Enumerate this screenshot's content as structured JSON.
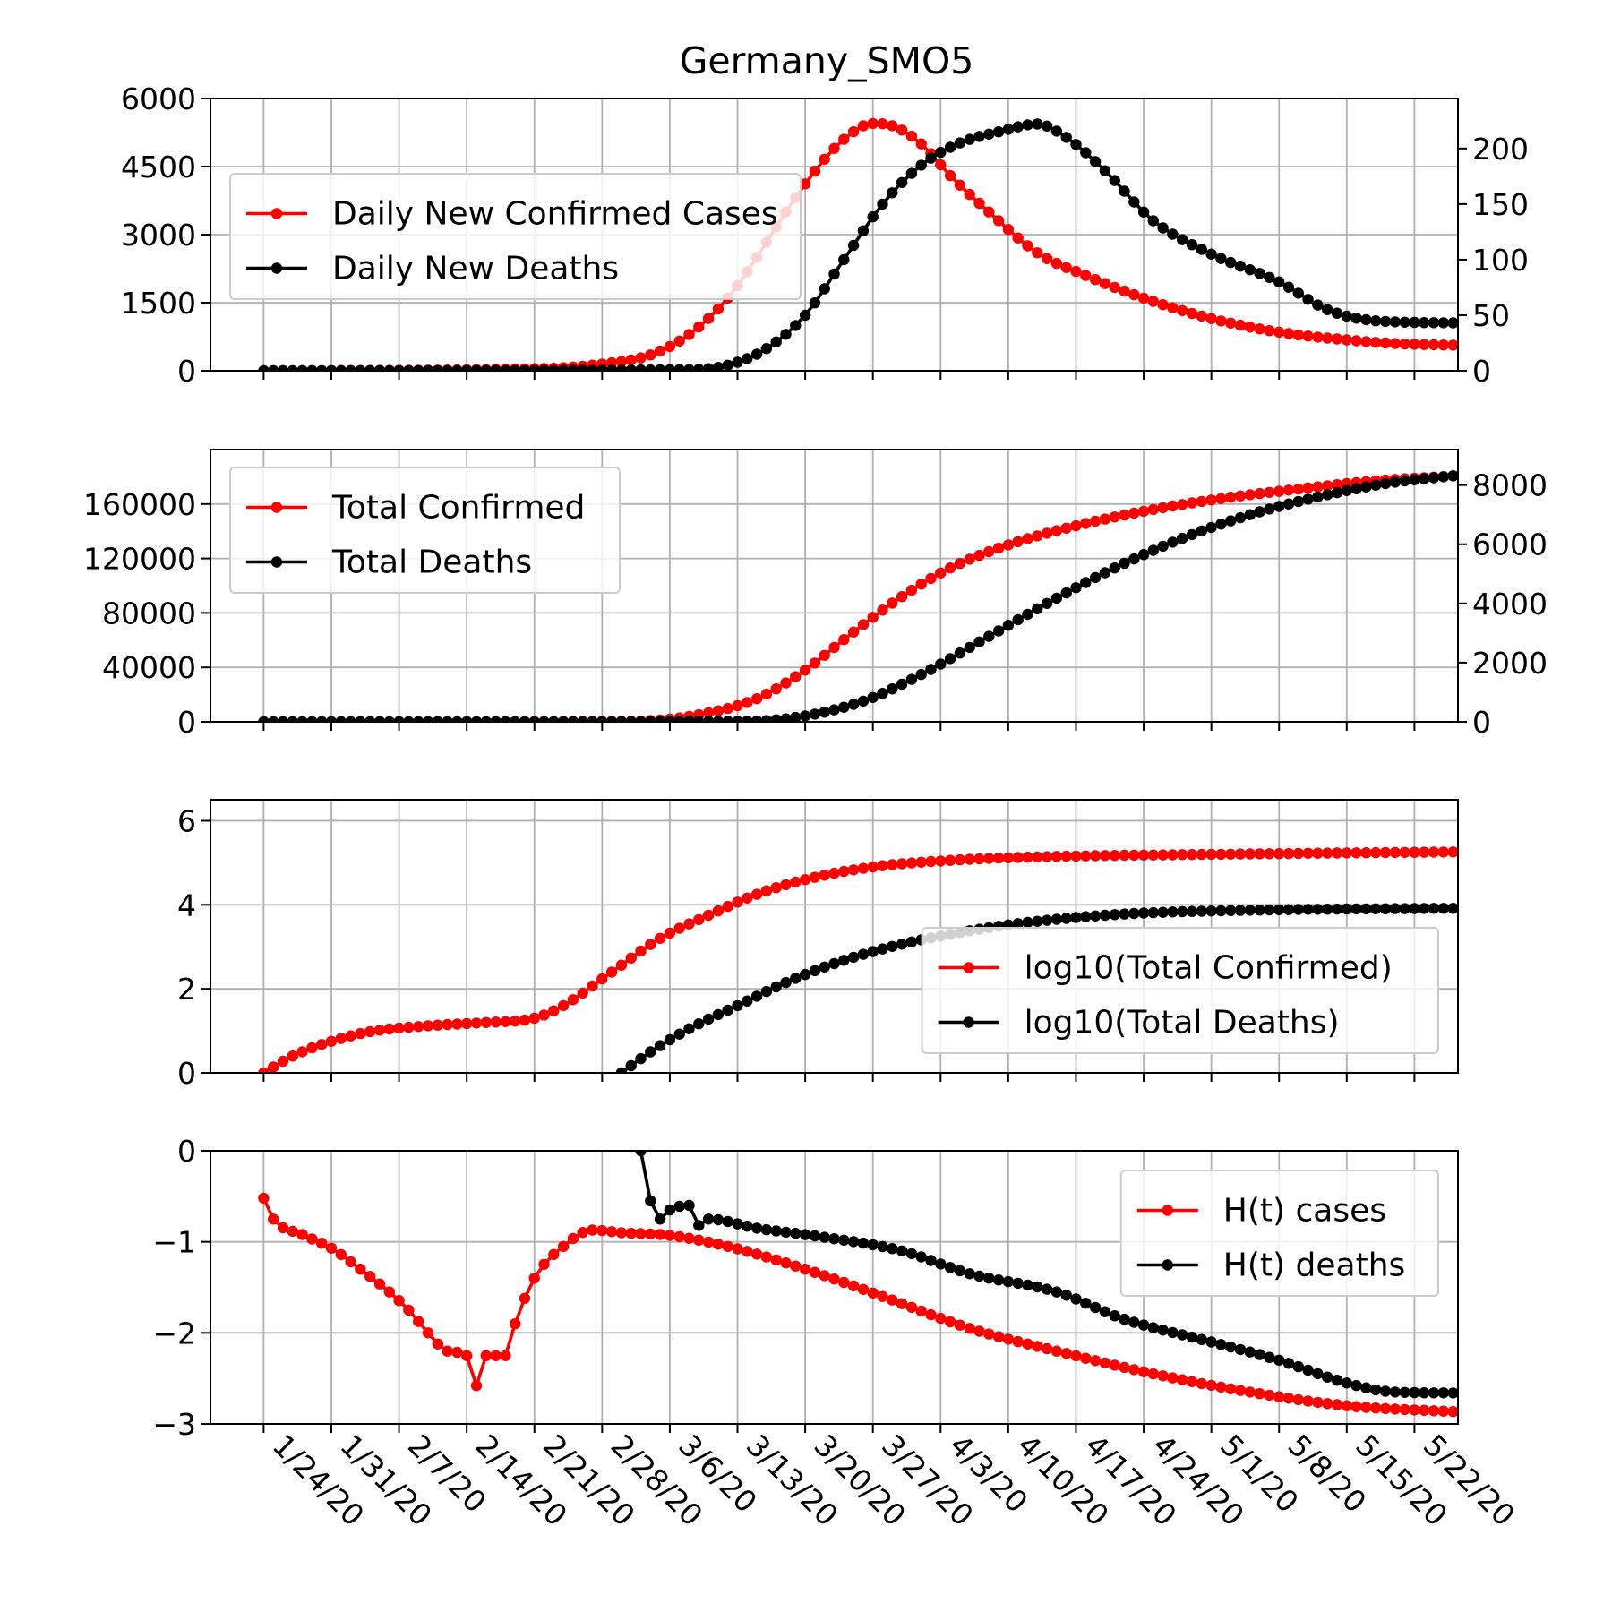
{
  "figure": {
    "title": "Germany_SMO5"
  },
  "colors": {
    "cases": "#ff0000",
    "deaths": "#000000",
    "grid": "#b0b0b0"
  },
  "x_ticks": {
    "days": [
      0,
      7,
      14,
      21,
      28,
      35,
      42,
      49,
      56,
      63,
      70,
      77,
      84,
      91,
      98,
      105,
      112,
      119
    ],
    "labels": [
      "1/24/20",
      "1/31/20",
      "2/7/20",
      "2/14/20",
      "2/21/20",
      "2/28/20",
      "3/6/20",
      "3/13/20",
      "3/20/20",
      "3/27/20",
      "4/3/20",
      "4/10/20",
      "4/17/20",
      "4/24/20",
      "5/1/20",
      "5/8/20",
      "5/15/20",
      "5/22/20"
    ],
    "rotation": "-45deg (clockwise-down)"
  },
  "chart_data": [
    {
      "type": "line",
      "title": "Germany_SMO5",
      "x_range": [
        "1/24/20",
        "5/27/20"
      ],
      "ylim": [
        0,
        6000
      ],
      "yticks": [
        0,
        1500,
        3000,
        4500,
        6000
      ],
      "ylim_right": [
        0,
        245
      ],
      "yticks_right": [
        0,
        50,
        100,
        150,
        200
      ],
      "grid": true,
      "legend": "upper-left",
      "series": [
        {
          "name": "Daily New Confirmed Cases",
          "axis": "left",
          "color": "#ff0000",
          "points": [
            [
              "1/24/20",
              0
            ],
            [
              "2/22/20",
              50
            ],
            [
              "2/28/20",
              150
            ],
            [
              "3/4/20",
              350
            ],
            [
              "3/8/20",
              800
            ],
            [
              "3/12/20",
              1600
            ],
            [
              "3/15/20",
              2500
            ],
            [
              "3/18/20",
              3500
            ],
            [
              "3/21/20",
              4400
            ],
            [
              "3/24/20",
              5100
            ],
            [
              "3/27/20",
              5450
            ],
            [
              "3/29/20",
              5400
            ],
            [
              "4/1/20",
              5000
            ],
            [
              "4/4/20",
              4300
            ],
            [
              "4/8/20",
              3500
            ],
            [
              "4/13/20",
              2600
            ],
            [
              "4/18/20",
              2100
            ],
            [
              "4/24/20",
              1600
            ],
            [
              "5/1/20",
              1150
            ],
            [
              "5/8/20",
              850
            ],
            [
              "5/15/20",
              680
            ],
            [
              "5/20/20",
              600
            ],
            [
              "5/27/20",
              560
            ]
          ]
        },
        {
          "name": "Daily New Deaths",
          "axis": "right",
          "color": "#000000",
          "points": [
            [
              "1/24/20",
              0
            ],
            [
              "3/8/20",
              1
            ],
            [
              "3/12/20",
              5
            ],
            [
              "3/16/20",
              20
            ],
            [
              "3/20/20",
              50
            ],
            [
              "3/24/20",
              100
            ],
            [
              "3/28/20",
              150
            ],
            [
              "4/1/20",
              185
            ],
            [
              "4/5/20",
              205
            ],
            [
              "4/9/20",
              215
            ],
            [
              "4/13/20",
              222
            ],
            [
              "4/16/20",
              210
            ],
            [
              "4/20/20",
              180
            ],
            [
              "4/25/20",
              135
            ],
            [
              "5/1/20",
              105
            ],
            [
              "5/8/20",
              80
            ],
            [
              "5/13/20",
              55
            ],
            [
              "5/18/20",
              45
            ],
            [
              "5/27/20",
              43
            ]
          ]
        }
      ]
    },
    {
      "type": "line",
      "ylim": [
        0,
        200000
      ],
      "yticks": [
        0,
        40000,
        80000,
        120000,
        160000
      ],
      "ylim_right": [
        0,
        9200
      ],
      "yticks_right": [
        0,
        2000,
        4000,
        6000,
        8000
      ],
      "grid": true,
      "legend": "upper-left",
      "series": [
        {
          "name": "Total Confirmed",
          "axis": "left",
          "color": "#ff0000",
          "points": [
            [
              "1/24/20",
              0
            ],
            [
              "3/1/20",
              300
            ],
            [
              "3/8/20",
              4000
            ],
            [
              "3/15/20",
              17000
            ],
            [
              "3/20/20",
              38000
            ],
            [
              "3/25/20",
              66000
            ],
            [
              "3/30/20",
              92000
            ],
            [
              "4/4/20",
              113000
            ],
            [
              "4/10/20",
              130000
            ],
            [
              "4/17/20",
              144000
            ],
            [
              "4/25/20",
              156000
            ],
            [
              "5/2/20",
              164000
            ],
            [
              "5/10/20",
              171000
            ],
            [
              "5/18/20",
              177000
            ],
            [
              "5/27/20",
              181000
            ]
          ]
        },
        {
          "name": "Total Deaths",
          "axis": "right",
          "color": "#000000",
          "points": [
            [
              "1/24/20",
              0
            ],
            [
              "3/14/20",
              20
            ],
            [
              "3/20/20",
              200
            ],
            [
              "3/26/20",
              700
            ],
            [
              "4/1/20",
              1600
            ],
            [
              "4/7/20",
              2700
            ],
            [
              "4/14/20",
              4000
            ],
            [
              "4/21/20",
              5200
            ],
            [
              "4/28/20",
              6200
            ],
            [
              "5/5/20",
              7000
            ],
            [
              "5/12/20",
              7600
            ],
            [
              "5/19/20",
              8050
            ],
            [
              "5/27/20",
              8350
            ]
          ]
        }
      ]
    },
    {
      "type": "line",
      "ylim": [
        0,
        6.5
      ],
      "yticks": [
        0,
        2,
        4,
        6
      ],
      "grid": true,
      "legend": "lower-right",
      "series": [
        {
          "name": "log10(Total Confirmed)",
          "color": "#ff0000",
          "points": [
            [
              "1/24/20",
              0
            ],
            [
              "1/27/20",
              0.4
            ],
            [
              "1/31/20",
              0.75
            ],
            [
              "2/4/20",
              0.98
            ],
            [
              "2/10/20",
              1.12
            ],
            [
              "2/16/20",
              1.2
            ],
            [
              "2/21/20",
              1.3
            ],
            [
              "2/24/20",
              1.6
            ],
            [
              "2/29/20",
              2.4
            ],
            [
              "3/5/20",
              3.2
            ],
            [
              "3/10/20",
              3.75
            ],
            [
              "3/15/20",
              4.25
            ],
            [
              "3/20/20",
              4.6
            ],
            [
              "3/27/20",
              4.9
            ],
            [
              "4/5/20",
              5.07
            ],
            [
              "4/15/20",
              5.15
            ],
            [
              "5/1/20",
              5.2
            ],
            [
              "5/27/20",
              5.26
            ]
          ]
        },
        {
          "name": "log10(Total Deaths)",
          "color": "#000000",
          "points": [
            [
              "3/1/20",
              0
            ],
            [
              "3/4/20",
              0.5
            ],
            [
              "3/8/20",
              1.05
            ],
            [
              "3/13/20",
              1.6
            ],
            [
              "3/18/20",
              2.15
            ],
            [
              "3/23/20",
              2.6
            ],
            [
              "3/28/20",
              2.95
            ],
            [
              "4/4/20",
              3.3
            ],
            [
              "4/12/20",
              3.58
            ],
            [
              "4/22/20",
              3.78
            ],
            [
              "5/5/20",
              3.87
            ],
            [
              "5/27/20",
              3.92
            ]
          ]
        }
      ]
    },
    {
      "type": "line",
      "ylim": [
        -3,
        0
      ],
      "yticks": [
        -3,
        -2,
        -1,
        0
      ],
      "grid": true,
      "legend": "upper-right",
      "series": [
        {
          "name": "H(t) cases",
          "color": "#ff0000",
          "points": [
            [
              "1/24/20",
              -0.52
            ],
            [
              "1/25/20",
              -0.75
            ],
            [
              "1/28/20",
              -0.92
            ],
            [
              "1/31/20",
              -1.07
            ],
            [
              "2/3/20",
              -1.3
            ],
            [
              "2/6/20",
              -1.55
            ],
            [
              "2/8/20",
              -1.75
            ],
            [
              "2/10/20",
              -2.0
            ],
            [
              "2/12/20",
              -2.2
            ],
            [
              "2/14/20",
              -2.25
            ],
            [
              "2/15/20",
              -2.58
            ],
            [
              "2/16/20",
              -2.25
            ],
            [
              "2/18/20",
              -2.25
            ],
            [
              "2/19/20",
              -1.9
            ],
            [
              "2/21/20",
              -1.4
            ],
            [
              "2/24/20",
              -1.05
            ],
            [
              "2/27/20",
              -0.87
            ],
            [
              "3/1/20",
              -0.9
            ],
            [
              "3/6/20",
              -0.93
            ],
            [
              "3/12/20",
              -1.05
            ],
            [
              "3/20/20",
              -1.3
            ],
            [
              "3/28/20",
              -1.6
            ],
            [
              "4/6/20",
              -1.95
            ],
            [
              "4/15/20",
              -2.2
            ],
            [
              "4/25/20",
              -2.45
            ],
            [
              "5/5/20",
              -2.65
            ],
            [
              "5/15/20",
              -2.8
            ],
            [
              "5/27/20",
              -2.87
            ]
          ]
        },
        {
          "name": "H(t) deaths",
          "color": "#000000",
          "points": [
            [
              "3/3/20",
              0
            ],
            [
              "3/4/20",
              -0.55
            ],
            [
              "3/5/20",
              -0.75
            ],
            [
              "3/6/20",
              -0.65
            ],
            [
              "3/8/20",
              -0.6
            ],
            [
              "3/9/20",
              -0.82
            ],
            [
              "3/10/20",
              -0.75
            ],
            [
              "3/15/20",
              -0.85
            ],
            [
              "3/22/20",
              -0.95
            ],
            [
              "3/30/20",
              -1.1
            ],
            [
              "4/6/20",
              -1.35
            ],
            [
              "4/15/20",
              -1.55
            ],
            [
              "4/22/20",
              -1.85
            ],
            [
              "5/1/20",
              -2.1
            ],
            [
              "5/8/20",
              -2.3
            ],
            [
              "5/15/20",
              -2.55
            ],
            [
              "5/20/20",
              -2.65
            ],
            [
              "5/27/20",
              -2.66
            ]
          ]
        }
      ]
    }
  ]
}
